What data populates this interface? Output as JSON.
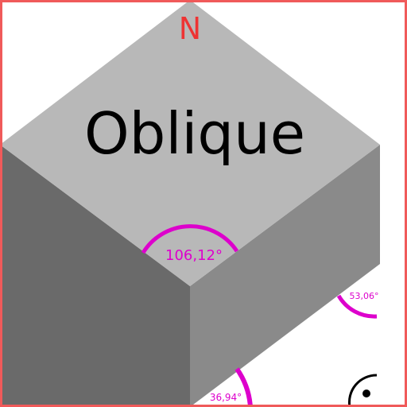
{
  "cube": {
    "top_label": "Oblique",
    "north_label": "N",
    "colors": {
      "top": "#b8b8b8",
      "left": "#6a6a6a",
      "right": "#8a8a8a",
      "angle": "#dd00cc",
      "north": "#ee3333",
      "frame": "#f05a5a"
    }
  },
  "angles": {
    "top": "106,12°",
    "right": "53,06°",
    "bottom": "36,94°"
  },
  "widget": {
    "icon": "rotate-view-icon"
  }
}
